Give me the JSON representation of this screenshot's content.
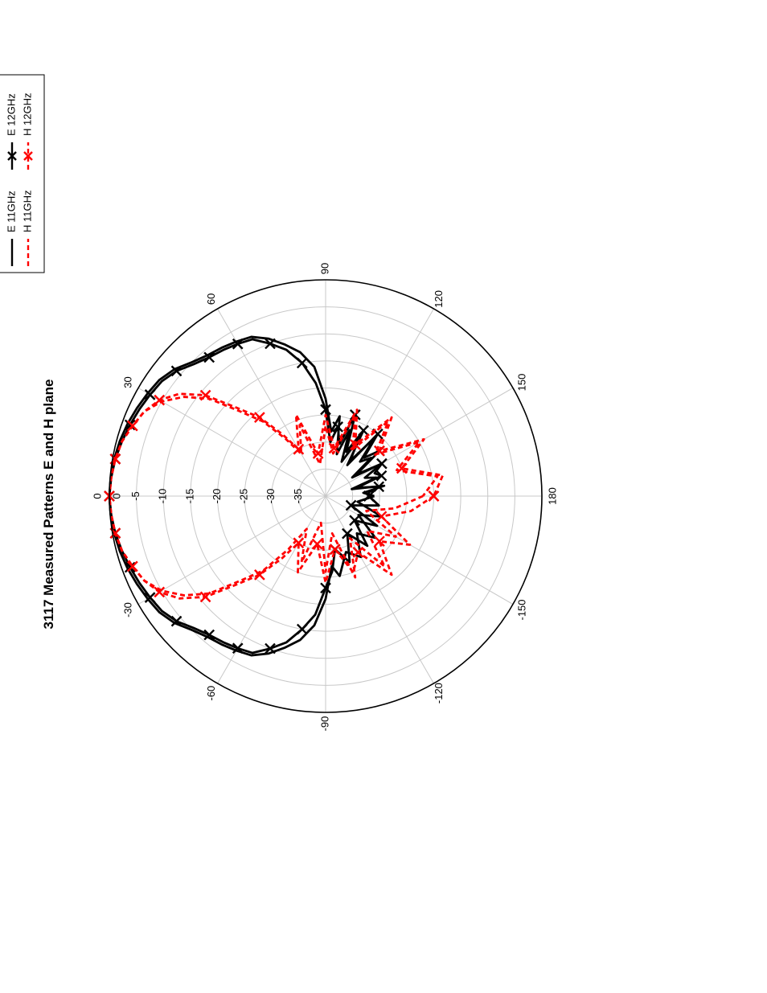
{
  "chart_data": {
    "type": "polar",
    "title": "3117 Measured Patterns E and H plane",
    "angle_unit": "degrees",
    "radial_unit": "dB",
    "r_range": [
      -40,
      0
    ],
    "radial_ticks": [
      0,
      -5,
      -10,
      -15,
      -20,
      -25,
      -30,
      -35
    ],
    "angle_ticks": [
      0,
      30,
      60,
      90,
      120,
      150,
      180,
      -150,
      -120,
      -90,
      -60,
      -30
    ],
    "grid": true,
    "legend_position": "top-right",
    "series": [
      {
        "name": "E 11GHz",
        "color": "#000000",
        "line": "solid",
        "marker": "none",
        "points": [
          [
            -180,
            -31
          ],
          [
            -170,
            -34
          ],
          [
            -160,
            -29
          ],
          [
            -150,
            -33
          ],
          [
            -140,
            -28
          ],
          [
            -130,
            -31
          ],
          [
            -120,
            -27
          ],
          [
            -110,
            -29
          ],
          [
            -100,
            -25
          ],
          [
            -95,
            -27
          ],
          [
            -90,
            -21
          ],
          [
            -85,
            -16
          ],
          [
            -80,
            -13
          ],
          [
            -75,
            -11
          ],
          [
            -70,
            -9
          ],
          [
            -65,
            -7.5
          ],
          [
            -60,
            -7
          ],
          [
            -55,
            -6.5
          ],
          [
            -50,
            -6
          ],
          [
            -45,
            -5
          ],
          [
            -40,
            -3.5
          ],
          [
            -35,
            -2.5
          ],
          [
            -30,
            -2
          ],
          [
            -25,
            -1.5
          ],
          [
            -20,
            -1
          ],
          [
            -15,
            -0.6
          ],
          [
            -10,
            -0.3
          ],
          [
            -5,
            -0.1
          ],
          [
            0,
            0
          ],
          [
            5,
            -0.1
          ],
          [
            10,
            -0.3
          ],
          [
            15,
            -0.6
          ],
          [
            20,
            -1
          ],
          [
            25,
            -1.5
          ],
          [
            30,
            -2
          ],
          [
            35,
            -2.5
          ],
          [
            40,
            -3.5
          ],
          [
            45,
            -5
          ],
          [
            50,
            -6
          ],
          [
            55,
            -6.5
          ],
          [
            60,
            -7
          ],
          [
            65,
            -7.5
          ],
          [
            70,
            -9
          ],
          [
            75,
            -11
          ],
          [
            80,
            -13
          ],
          [
            85,
            -16
          ],
          [
            90,
            -22
          ],
          [
            95,
            -28
          ],
          [
            100,
            -25
          ],
          [
            105,
            -32
          ],
          [
            110,
            -27
          ],
          [
            115,
            -33
          ],
          [
            120,
            -28
          ],
          [
            125,
            -32
          ],
          [
            130,
            -26
          ],
          [
            135,
            -31
          ],
          [
            140,
            -29
          ],
          [
            145,
            -34
          ],
          [
            150,
            -28
          ],
          [
            155,
            -32
          ],
          [
            160,
            -30
          ],
          [
            165,
            -35
          ],
          [
            170,
            -29
          ],
          [
            175,
            -33
          ],
          [
            180,
            -31
          ]
        ]
      },
      {
        "name": "E 12GHz",
        "color": "#000000",
        "line": "solid",
        "marker": "x",
        "points": [
          [
            -180,
            -32
          ],
          [
            -170,
            -30
          ],
          [
            -160,
            -35
          ],
          [
            -150,
            -29
          ],
          [
            -140,
            -33
          ],
          [
            -130,
            -28
          ],
          [
            -120,
            -32
          ],
          [
            -110,
            -27
          ],
          [
            -100,
            -30
          ],
          [
            -95,
            -26
          ],
          [
            -90,
            -23
          ],
          [
            -85,
            -18
          ],
          [
            -80,
            -15
          ],
          [
            -75,
            -12
          ],
          [
            -70,
            -10
          ],
          [
            -65,
            -8
          ],
          [
            -60,
            -7.5
          ],
          [
            -55,
            -7
          ],
          [
            -50,
            -6.5
          ],
          [
            -45,
            -5.5
          ],
          [
            -40,
            -4
          ],
          [
            -35,
            -3
          ],
          [
            -30,
            -2.5
          ],
          [
            -25,
            -2
          ],
          [
            -20,
            -1.5
          ],
          [
            -15,
            -1
          ],
          [
            -10,
            -0.5
          ],
          [
            -5,
            -0.2
          ],
          [
            0,
            0
          ],
          [
            5,
            -0.2
          ],
          [
            10,
            -0.5
          ],
          [
            15,
            -1
          ],
          [
            20,
            -1.5
          ],
          [
            25,
            -2
          ],
          [
            30,
            -2.5
          ],
          [
            35,
            -3
          ],
          [
            40,
            -4
          ],
          [
            45,
            -5.5
          ],
          [
            50,
            -6.5
          ],
          [
            55,
            -7
          ],
          [
            60,
            -7.5
          ],
          [
            65,
            -8
          ],
          [
            70,
            -10
          ],
          [
            75,
            -12
          ],
          [
            80,
            -15
          ],
          [
            85,
            -19
          ],
          [
            90,
            -24
          ],
          [
            95,
            -30
          ],
          [
            100,
            -27
          ],
          [
            105,
            -30
          ],
          [
            110,
            -24
          ],
          [
            115,
            -31
          ],
          [
            120,
            -26
          ],
          [
            125,
            -33
          ],
          [
            130,
            -25
          ],
          [
            135,
            -30
          ],
          [
            140,
            -27
          ],
          [
            145,
            -33
          ],
          [
            150,
            -28
          ],
          [
            155,
            -30
          ],
          [
            160,
            -29
          ],
          [
            165,
            -34
          ],
          [
            170,
            -30
          ],
          [
            175,
            -32
          ],
          [
            180,
            -32
          ]
        ]
      },
      {
        "name": "H 11GHz",
        "color": "#ff0000",
        "line": "dashed",
        "marker": "none",
        "points": [
          [
            -180,
            -22
          ],
          [
            -170,
            -27
          ],
          [
            -160,
            -32
          ],
          [
            -150,
            -25
          ],
          [
            -140,
            -30
          ],
          [
            -130,
            -23
          ],
          [
            -120,
            -31
          ],
          [
            -110,
            -24
          ],
          [
            -100,
            -33
          ],
          [
            -90,
            -26
          ],
          [
            -80,
            -35
          ],
          [
            -70,
            -27
          ],
          [
            -60,
            -33
          ],
          [
            -55,
            -28
          ],
          [
            -50,
            -22
          ],
          [
            -45,
            -18
          ],
          [
            -40,
            -12
          ],
          [
            -35,
            -8
          ],
          [
            -30,
            -5
          ],
          [
            -25,
            -3
          ],
          [
            -20,
            -2
          ],
          [
            -15,
            -1
          ],
          [
            -10,
            -0.5
          ],
          [
            -5,
            -0.2
          ],
          [
            0,
            0
          ],
          [
            5,
            -0.2
          ],
          [
            10,
            -0.5
          ],
          [
            15,
            -1
          ],
          [
            20,
            -2
          ],
          [
            25,
            -3
          ],
          [
            30,
            -5
          ],
          [
            35,
            -8
          ],
          [
            40,
            -12
          ],
          [
            45,
            -18
          ],
          [
            50,
            -22
          ],
          [
            55,
            -27
          ],
          [
            60,
            -31
          ],
          [
            70,
            -26
          ],
          [
            80,
            -34
          ],
          [
            90,
            -27
          ],
          [
            100,
            -32
          ],
          [
            110,
            -24
          ],
          [
            120,
            -30
          ],
          [
            130,
            -22
          ],
          [
            140,
            -28
          ],
          [
            150,
            -20
          ],
          [
            160,
            -26
          ],
          [
            170,
            -19
          ],
          [
            180,
            -22
          ]
        ]
      },
      {
        "name": "H 12GHz",
        "color": "#ff0000",
        "line": "dashed",
        "marker": "x",
        "points": [
          [
            -180,
            -20
          ],
          [
            -170,
            -24
          ],
          [
            -160,
            -29
          ],
          [
            -150,
            -22
          ],
          [
            -140,
            -27
          ],
          [
            -130,
            -21
          ],
          [
            -120,
            -28
          ],
          [
            -110,
            -25
          ],
          [
            -100,
            -30
          ],
          [
            -90,
            -24
          ],
          [
            -80,
            -31
          ],
          [
            -70,
            -25
          ],
          [
            -60,
            -30
          ],
          [
            -55,
            -26
          ],
          [
            -50,
            -21
          ],
          [
            -45,
            -17
          ],
          [
            -40,
            -11
          ],
          [
            -35,
            -7
          ],
          [
            -30,
            -4.5
          ],
          [
            -25,
            -3
          ],
          [
            -20,
            -2
          ],
          [
            -15,
            -1
          ],
          [
            -10,
            -0.5
          ],
          [
            -5,
            -0.2
          ],
          [
            0,
            0
          ],
          [
            5,
            -0.2
          ],
          [
            10,
            -0.5
          ],
          [
            15,
            -1
          ],
          [
            20,
            -2
          ],
          [
            25,
            -3
          ],
          [
            30,
            -4.5
          ],
          [
            35,
            -7
          ],
          [
            40,
            -11
          ],
          [
            45,
            -17
          ],
          [
            50,
            -21
          ],
          [
            55,
            -26
          ],
          [
            60,
            -30
          ],
          [
            70,
            -24
          ],
          [
            80,
            -32
          ],
          [
            90,
            -25
          ],
          [
            100,
            -31
          ],
          [
            110,
            -23
          ],
          [
            120,
            -29
          ],
          [
            130,
            -21
          ],
          [
            140,
            -27
          ],
          [
            150,
            -19
          ],
          [
            160,
            -25
          ],
          [
            170,
            -18
          ],
          [
            180,
            -20
          ]
        ]
      }
    ]
  }
}
